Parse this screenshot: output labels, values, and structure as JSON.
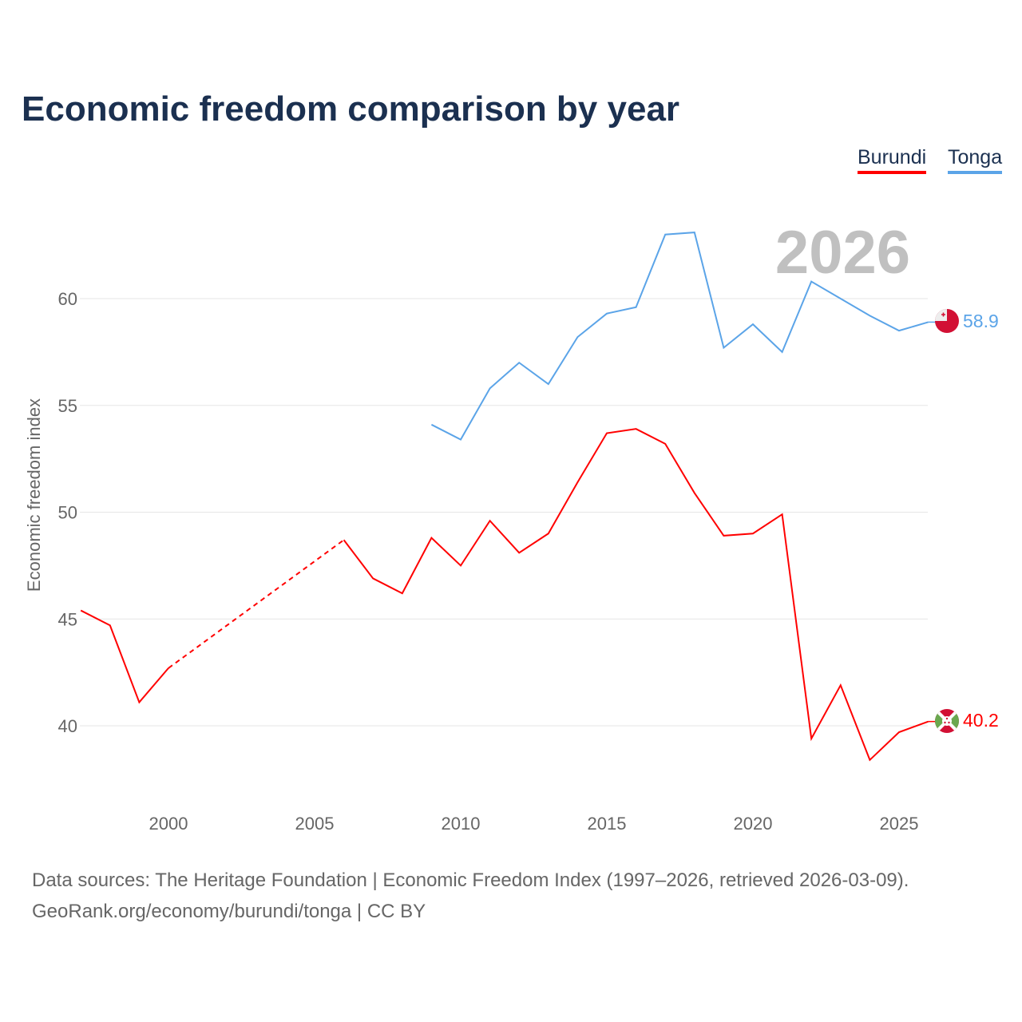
{
  "title": "Economic freedom comparison by year",
  "year_watermark": "2026",
  "footer": {
    "line1": "Data sources: The Heritage Foundation | Economic Freedom Index (1997–2026, retrieved 2026-03-09).",
    "line2": "GeoRank.org/economy/burundi/tonga | CC BY"
  },
  "chart_data": {
    "type": "line",
    "title": "Economic freedom comparison by year",
    "xlabel": "",
    "ylabel": "Economic freedom index",
    "xlim": [
      1997,
      2026
    ],
    "ylim": [
      37,
      64
    ],
    "x_ticks": [
      "2000",
      "2005",
      "2010",
      "2015",
      "2020",
      "2025"
    ],
    "y_ticks": [
      "40",
      "45",
      "50",
      "55",
      "60"
    ],
    "grid": true,
    "legend_position": "top-right",
    "x": [
      1997,
      1998,
      1999,
      2000,
      2001,
      2002,
      2003,
      2004,
      2005,
      2006,
      2007,
      2008,
      2009,
      2010,
      2011,
      2012,
      2013,
      2014,
      2015,
      2016,
      2017,
      2018,
      2019,
      2020,
      2021,
      2022,
      2023,
      2024,
      2025,
      2026
    ],
    "series": [
      {
        "name": "Burundi",
        "color": "#ff0000",
        "end_label": "40.2",
        "flag": "burundi-flag",
        "values": [
          45.4,
          44.7,
          41.1,
          42.7,
          null,
          null,
          null,
          null,
          null,
          48.7,
          46.9,
          46.2,
          48.8,
          47.5,
          49.6,
          48.1,
          49.0,
          51.4,
          53.7,
          53.9,
          53.2,
          50.9,
          48.9,
          49.0,
          49.9,
          39.4,
          41.9,
          38.4,
          39.7,
          40.2
        ]
      },
      {
        "name": "Tonga",
        "color": "#5ba4e8",
        "end_label": "58.9",
        "flag": "tonga-flag",
        "values": [
          null,
          null,
          null,
          null,
          null,
          null,
          null,
          null,
          null,
          null,
          null,
          null,
          54.1,
          53.4,
          55.8,
          57.0,
          56.0,
          58.2,
          59.3,
          59.6,
          63.0,
          63.1,
          57.7,
          58.8,
          57.5,
          60.8,
          60.0,
          59.2,
          58.5,
          58.9
        ]
      }
    ]
  }
}
